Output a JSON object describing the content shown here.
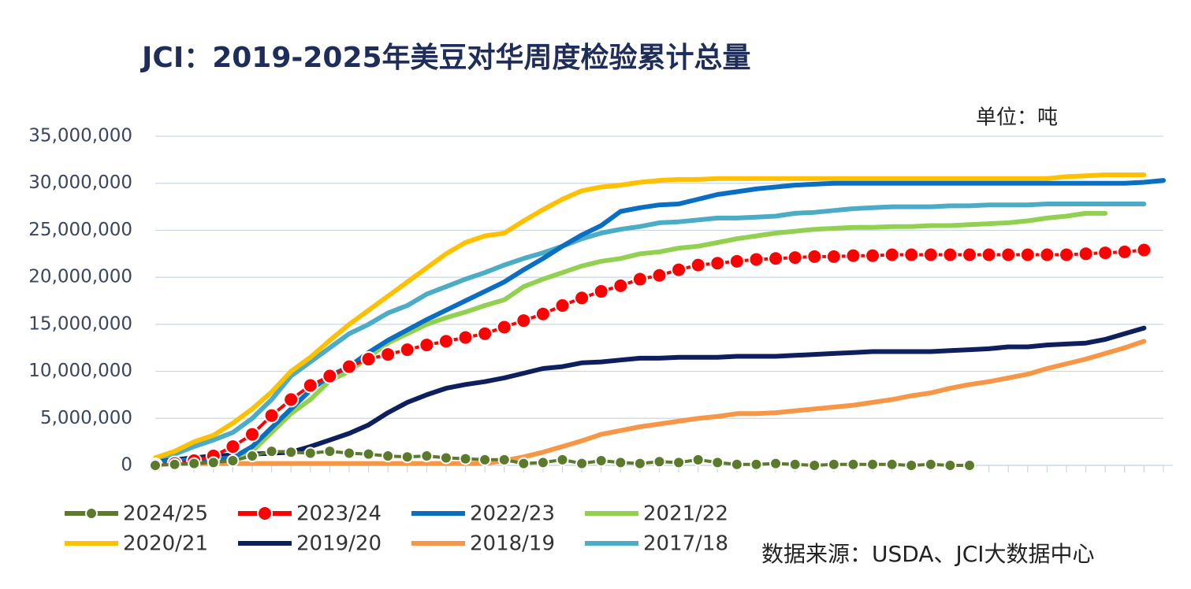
{
  "chart_data": {
    "type": "line",
    "title": "JCI：2019-2025年美豆对华周度检验累计总量",
    "unit": "单位：吨",
    "source": "数据来源：USDA、JCI大数据中心",
    "categories": [
      null,
      null,
      null,
      null,
      null,
      null,
      null,
      null,
      null,
      null,
      null,
      null,
      null,
      null,
      null,
      null,
      null,
      null,
      null,
      null,
      null,
      null,
      null,
      null,
      null,
      null,
      null,
      null,
      null,
      null,
      null,
      null,
      null,
      null,
      null,
      null,
      null,
      null,
      null,
      null,
      null,
      null,
      null,
      null,
      null,
      null,
      null,
      null,
      null,
      null,
      null,
      null,
      null
    ],
    "ylim": [
      0,
      35000000
    ],
    "yticks": [
      0,
      {
        "value": 5000000,
        "label": "5,000,000"
      },
      {
        "value": 10000000,
        "label": "10,000,000"
      },
      {
        "value": 15000000,
        "label": "15,000,000"
      },
      {
        "value": 20000000,
        "label": "20,000,000"
      },
      {
        "value": 25000000,
        "label": "25,000,000"
      },
      {
        "value": 30000000,
        "label": "30,000,000"
      },
      {
        "value": 35000000,
        "label": "35,000,000"
      }
    ],
    "grid": true,
    "legend": "bottom",
    "series": [
      {
        "name": "2024/25",
        "color": "#5b7a2c",
        "marker": true,
        "values": [
          0,
          100000,
          200000,
          300000,
          500000,
          1000000,
          1500000,
          1400000,
          1300000,
          1500000,
          1300000,
          1200000,
          1000000,
          900000,
          1000000,
          800000,
          700000,
          600000,
          600000,
          200000,
          300000,
          600000,
          200000,
          500000,
          300000,
          200000,
          400000,
          300000,
          600000,
          300000,
          100000,
          100000,
          200000,
          100000,
          0,
          100000,
          100000,
          100000,
          100000,
          0,
          100000,
          0,
          0,
          null,
          null,
          null,
          null,
          null,
          null,
          null,
          null,
          null,
          null
        ]
      },
      {
        "name": "2023/24",
        "color": "#ff0000",
        "marker": true,
        "values": [
          0,
          200000,
          500000,
          1000000,
          2000000,
          3300000,
          5300000,
          7000000,
          8500000,
          9500000,
          10500000,
          11300000,
          11800000,
          12300000,
          12800000,
          13200000,
          13600000,
          14000000,
          14700000,
          15400000,
          16100000,
          17000000,
          17800000,
          18500000,
          19100000,
          19800000,
          20200000,
          20800000,
          21300000,
          21500000,
          21700000,
          21900000,
          22000000,
          22100000,
          22200000,
          22200000,
          22300000,
          22300000,
          22400000,
          22400000,
          22400000,
          22400000,
          22400000,
          22400000,
          22400000,
          22400000,
          22400000,
          22400000,
          22500000,
          22600000,
          22700000,
          22900000,
          null
        ]
      },
      {
        "name": "2022/23",
        "color": "#0a6fc2",
        "marker": false,
        "values": [
          300000,
          500000,
          600000,
          700000,
          800000,
          2000000,
          4000000,
          6000000,
          8000000,
          9500000,
          10500000,
          12000000,
          13300000,
          14400000,
          15500000,
          16500000,
          17500000,
          18500000,
          19500000,
          20800000,
          22000000,
          23300000,
          24500000,
          25500000,
          27000000,
          27400000,
          27700000,
          27800000,
          28300000,
          28800000,
          29100000,
          29400000,
          29600000,
          29800000,
          29900000,
          30000000,
          30000000,
          30000000,
          30000000,
          30000000,
          30000000,
          30000000,
          30000000,
          30000000,
          30000000,
          30000000,
          30000000,
          30000000,
          30000000,
          30000000,
          30000000,
          30100000,
          30300000
        ]
      },
      {
        "name": "2021/22",
        "color": "#92d050",
        "marker": false,
        "values": [
          300000,
          400000,
          500000,
          600000,
          700000,
          1500000,
          3500000,
          5500000,
          7000000,
          9000000,
          10000000,
          11500000,
          13000000,
          14000000,
          15000000,
          15700000,
          16300000,
          17000000,
          17600000,
          19000000,
          19800000,
          20500000,
          21200000,
          21700000,
          22000000,
          22500000,
          22700000,
          23100000,
          23300000,
          23700000,
          24100000,
          24400000,
          24700000,
          24900000,
          25100000,
          25200000,
          25300000,
          25300000,
          25400000,
          25400000,
          25500000,
          25500000,
          25600000,
          25700000,
          25800000,
          26000000,
          26300000,
          26500000,
          26800000,
          26800000,
          null,
          null,
          null
        ]
      },
      {
        "name": "2020/21",
        "color": "#ffc000",
        "marker": false,
        "values": [
          800000,
          1500000,
          2500000,
          3200000,
          4500000,
          6000000,
          7800000,
          10000000,
          11500000,
          13300000,
          15000000,
          16500000,
          18000000,
          19500000,
          21000000,
          22500000,
          23700000,
          24400000,
          24700000,
          26000000,
          27200000,
          28300000,
          29200000,
          29600000,
          29800000,
          30100000,
          30300000,
          30400000,
          30400000,
          30500000,
          30500000,
          30500000,
          30500000,
          30500000,
          30500000,
          30500000,
          30500000,
          30500000,
          30500000,
          30500000,
          30500000,
          30500000,
          30500000,
          30500000,
          30500000,
          30500000,
          30500000,
          30700000,
          30800000,
          30900000,
          30900000,
          30900000,
          null
        ]
      },
      {
        "name": "2019/20",
        "color": "#0d1f5c",
        "marker": false,
        "values": [
          300000,
          600000,
          800000,
          1000000,
          1100000,
          1200000,
          1300000,
          1400000,
          2000000,
          2700000,
          3400000,
          4300000,
          5600000,
          6700000,
          7500000,
          8200000,
          8600000,
          8900000,
          9300000,
          9800000,
          10300000,
          10500000,
          10900000,
          11000000,
          11200000,
          11400000,
          11400000,
          11500000,
          11500000,
          11500000,
          11600000,
          11600000,
          11600000,
          11700000,
          11800000,
          11900000,
          12000000,
          12100000,
          12100000,
          12100000,
          12100000,
          12200000,
          12300000,
          12400000,
          12600000,
          12600000,
          12800000,
          12900000,
          13000000,
          13400000,
          14000000,
          14600000,
          null
        ]
      },
      {
        "name": "2018/19",
        "color": "#f79646",
        "marker": false,
        "values": [
          100000,
          200000,
          200000,
          200000,
          200000,
          200000,
          200000,
          200000,
          200000,
          200000,
          200000,
          200000,
          200000,
          200000,
          200000,
          200000,
          200000,
          200000,
          500000,
          900000,
          1400000,
          2000000,
          2600000,
          3300000,
          3700000,
          4100000,
          4400000,
          4700000,
          5000000,
          5200000,
          5500000,
          5500000,
          5600000,
          5800000,
          6000000,
          6200000,
          6400000,
          6700000,
          7000000,
          7400000,
          7700000,
          8200000,
          8600000,
          8900000,
          9300000,
          9700000,
          10300000,
          10800000,
          11300000,
          11900000,
          12500000,
          13200000,
          null
        ]
      },
      {
        "name": "2017/18",
        "color": "#4bacc6",
        "marker": false,
        "values": [
          500000,
          1200000,
          2000000,
          2700000,
          3500000,
          5000000,
          7000000,
          9500000,
          11000000,
          12500000,
          14000000,
          15000000,
          16200000,
          17000000,
          18200000,
          19000000,
          19800000,
          20500000,
          21300000,
          22000000,
          22600000,
          23300000,
          24100000,
          24700000,
          25100000,
          25400000,
          25800000,
          25900000,
          26100000,
          26300000,
          26300000,
          26400000,
          26500000,
          26800000,
          26900000,
          27100000,
          27300000,
          27400000,
          27500000,
          27500000,
          27500000,
          27600000,
          27600000,
          27700000,
          27700000,
          27700000,
          27800000,
          27800000,
          27800000,
          27800000,
          27800000,
          27800000,
          null
        ]
      }
    ]
  }
}
